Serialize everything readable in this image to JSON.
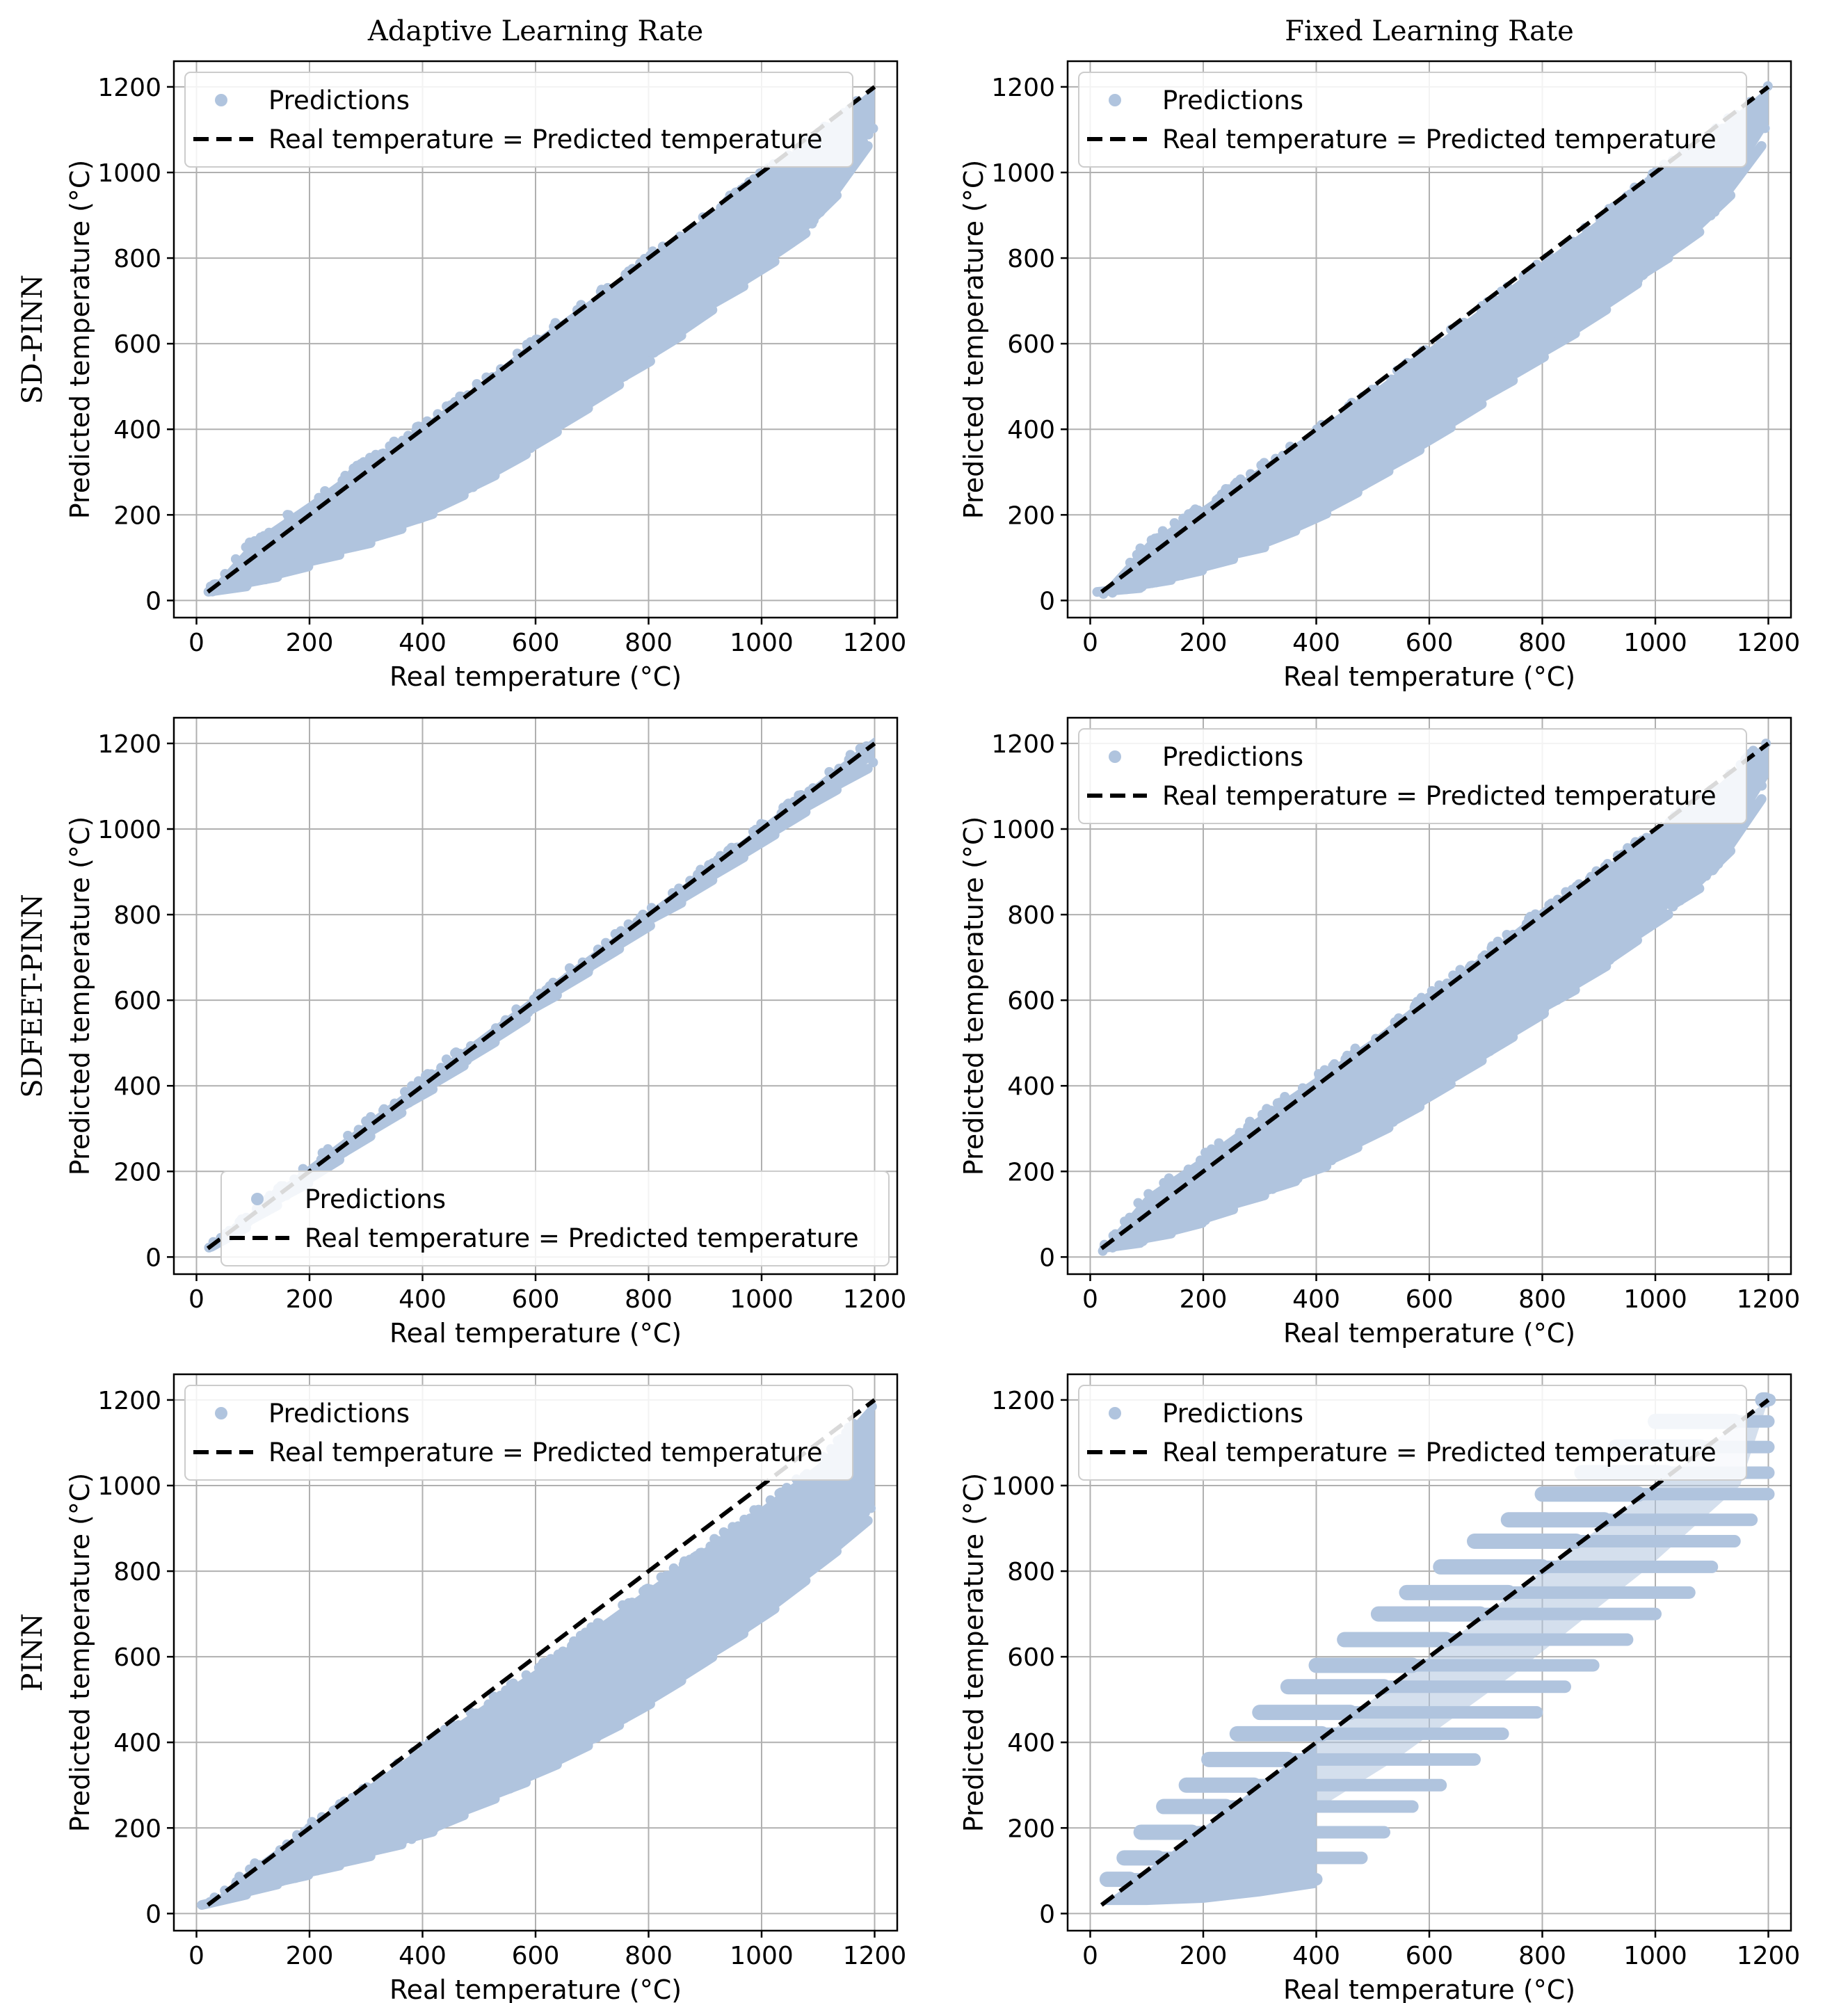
{
  "column_titles": [
    "Adaptive Learning Rate",
    "Fixed Learning Rate"
  ],
  "row_titles": [
    "SD-PINN",
    "SDFEET-PINN",
    "PINN"
  ],
  "colors": {
    "predictions": "#b0c4de",
    "ideal_line": "#000000"
  },
  "chart_data": [
    {
      "type": "scatter",
      "row": 0,
      "col": 0,
      "model": "SD-PINN",
      "learning_rate": "Adaptive",
      "xlabel": "Real temperature (°C)",
      "ylabel": "Predicted temperature (°C)",
      "xlim": [
        -40,
        1240
      ],
      "ylim": [
        -40,
        1260
      ],
      "xticks": [
        0,
        200,
        400,
        600,
        800,
        1000,
        1200
      ],
      "yticks": [
        0,
        200,
        400,
        600,
        800,
        1000,
        1200
      ],
      "legend": {
        "position": "upper-left",
        "entries": [
          "Predictions",
          "Real temperature = Predicted temperature"
        ]
      },
      "series": [
        {
          "name": "Predictions",
          "kind": "scatter_band",
          "upper": [
            [
              20,
              20
            ],
            [
              100,
              140
            ],
            [
              200,
              230
            ],
            [
              300,
              325
            ],
            [
              400,
              410
            ],
            [
              500,
              505
            ],
            [
              600,
              610
            ],
            [
              700,
              705
            ],
            [
              800,
              805
            ],
            [
              900,
              895
            ],
            [
              1000,
              1000
            ],
            [
              1100,
              1090
            ],
            [
              1200,
              1200
            ]
          ],
          "lower": [
            [
              20,
              20
            ],
            [
              100,
              45
            ],
            [
              200,
              90
            ],
            [
              300,
              140
            ],
            [
              400,
              200
            ],
            [
              500,
              280
            ],
            [
              600,
              370
            ],
            [
              700,
              470
            ],
            [
              800,
              570
            ],
            [
              900,
              680
            ],
            [
              1000,
              780
            ],
            [
              1100,
              900
            ],
            [
              1200,
              1110
            ]
          ]
        },
        {
          "name": "Real temperature = Predicted temperature",
          "kind": "line",
          "x": [
            20,
            1200
          ],
          "y": [
            20,
            1200
          ]
        }
      ]
    },
    {
      "type": "scatter",
      "row": 0,
      "col": 1,
      "model": "SD-PINN",
      "learning_rate": "Fixed",
      "xlabel": "Real temperature (°C)",
      "ylabel": "Predicted temperature (°C)",
      "xlim": [
        -40,
        1240
      ],
      "ylim": [
        -40,
        1260
      ],
      "xticks": [
        0,
        200,
        400,
        600,
        800,
        1000,
        1200
      ],
      "yticks": [
        0,
        200,
        400,
        600,
        800,
        1000,
        1200
      ],
      "legend": {
        "position": "upper-left",
        "entries": [
          "Predictions",
          "Real temperature = Predicted temperature"
        ]
      },
      "series": [
        {
          "name": "Predictions",
          "kind": "scatter_band",
          "upper": [
            [
              20,
              20
            ],
            [
              100,
              135
            ],
            [
              200,
              220
            ],
            [
              300,
              310
            ],
            [
              400,
              400
            ],
            [
              500,
              490
            ],
            [
              600,
              590
            ],
            [
              700,
              690
            ],
            [
              800,
              790
            ],
            [
              900,
              890
            ],
            [
              1000,
              1000
            ],
            [
              1100,
              1090
            ],
            [
              1200,
              1200
            ]
          ],
          "lower": [
            [
              20,
              20
            ],
            [
              100,
              40
            ],
            [
              200,
              80
            ],
            [
              300,
              130
            ],
            [
              400,
              200
            ],
            [
              500,
              290
            ],
            [
              600,
              380
            ],
            [
              700,
              480
            ],
            [
              800,
              580
            ],
            [
              900,
              680
            ],
            [
              1000,
              790
            ],
            [
              1100,
              900
            ],
            [
              1200,
              1110
            ]
          ]
        },
        {
          "name": "Real temperature = Predicted temperature",
          "kind": "line",
          "x": [
            20,
            1200
          ],
          "y": [
            20,
            1200
          ]
        }
      ]
    },
    {
      "type": "scatter",
      "row": 1,
      "col": 0,
      "model": "SDFEET-PINN",
      "learning_rate": "Adaptive",
      "xlabel": "Real temperature (°C)",
      "ylabel": "Predicted temperature (°C)",
      "xlim": [
        -40,
        1240
      ],
      "ylim": [
        -40,
        1260
      ],
      "xticks": [
        0,
        200,
        400,
        600,
        800,
        1000,
        1200
      ],
      "yticks": [
        0,
        200,
        400,
        600,
        800,
        1000,
        1200
      ],
      "legend": {
        "position": "lower-right",
        "entries": [
          "Predictions",
          "Real temperature = Predicted temperature"
        ]
      },
      "series": [
        {
          "name": "Predictions",
          "kind": "scatter_band",
          "upper": [
            [
              20,
              22
            ],
            [
              200,
              215
            ],
            [
              400,
              415
            ],
            [
              600,
              612
            ],
            [
              800,
              808
            ],
            [
              1000,
              1008
            ],
            [
              1100,
              1110
            ],
            [
              1200,
              1215
            ]
          ],
          "lower": [
            [
              20,
              18
            ],
            [
              200,
              188
            ],
            [
              400,
              388
            ],
            [
              600,
              588
            ],
            [
              800,
              785
            ],
            [
              1000,
              978
            ],
            [
              1100,
              1075
            ],
            [
              1200,
              1165
            ]
          ]
        },
        {
          "name": "Real temperature = Predicted temperature",
          "kind": "line",
          "x": [
            20,
            1200
          ],
          "y": [
            20,
            1200
          ]
        }
      ]
    },
    {
      "type": "scatter",
      "row": 1,
      "col": 1,
      "model": "SDFEET-PINN",
      "learning_rate": "Fixed",
      "xlabel": "Real temperature (°C)",
      "ylabel": "Predicted temperature (°C)",
      "xlim": [
        -40,
        1240
      ],
      "ylim": [
        -40,
        1260
      ],
      "xticks": [
        0,
        200,
        400,
        600,
        800,
        1000,
        1200
      ],
      "yticks": [
        0,
        200,
        400,
        600,
        800,
        1000,
        1200
      ],
      "legend": {
        "position": "upper-left",
        "entries": [
          "Predictions",
          "Real temperature = Predicted temperature"
        ]
      },
      "series": [
        {
          "name": "Predictions",
          "kind": "scatter_band",
          "upper": [
            [
              20,
              20
            ],
            [
              100,
              145
            ],
            [
              200,
              235
            ],
            [
              300,
              330
            ],
            [
              400,
              420
            ],
            [
              500,
              510
            ],
            [
              600,
              615
            ],
            [
              700,
              710
            ],
            [
              800,
              815
            ],
            [
              900,
              900
            ],
            [
              1000,
              1000
            ],
            [
              1100,
              1090
            ],
            [
              1200,
              1210
            ]
          ],
          "lower": [
            [
              20,
              20
            ],
            [
              100,
              45
            ],
            [
              200,
              90
            ],
            [
              300,
              150
            ],
            [
              400,
              210
            ],
            [
              500,
              290
            ],
            [
              600,
              380
            ],
            [
              700,
              480
            ],
            [
              800,
              580
            ],
            [
              900,
              680
            ],
            [
              1000,
              790
            ],
            [
              1100,
              900
            ],
            [
              1200,
              1120
            ]
          ]
        },
        {
          "name": "Real temperature = Predicted temperature",
          "kind": "line",
          "x": [
            20,
            1200
          ],
          "y": [
            20,
            1200
          ]
        }
      ]
    },
    {
      "type": "scatter",
      "row": 2,
      "col": 0,
      "model": "PINN",
      "learning_rate": "Adaptive",
      "xlabel": "Real temperature (°C)",
      "ylabel": "Predicted temperature (°C)",
      "xlim": [
        -40,
        1240
      ],
      "ylim": [
        -40,
        1260
      ],
      "xticks": [
        0,
        200,
        400,
        600,
        800,
        1000,
        1200
      ],
      "yticks": [
        0,
        200,
        400,
        600,
        800,
        1000,
        1200
      ],
      "legend": {
        "position": "upper-left",
        "entries": [
          "Predictions",
          "Real temperature = Predicted temperature"
        ]
      },
      "series": [
        {
          "name": "Predictions",
          "kind": "scatter_band",
          "upper": [
            [
              20,
              20
            ],
            [
              100,
              110
            ],
            [
              200,
              205
            ],
            [
              300,
              295
            ],
            [
              400,
              390
            ],
            [
              500,
              480
            ],
            [
              600,
              570
            ],
            [
              700,
              665
            ],
            [
              800,
              760
            ],
            [
              900,
              855
            ],
            [
              1000,
              950
            ],
            [
              1100,
              1050
            ],
            [
              1200,
              1200
            ]
          ],
          "lower": [
            [
              20,
              20
            ],
            [
              100,
              60
            ],
            [
              200,
              100
            ],
            [
              300,
              140
            ],
            [
              400,
              190
            ],
            [
              500,
              260
            ],
            [
              600,
              330
            ],
            [
              700,
              410
            ],
            [
              800,
              500
            ],
            [
              900,
              600
            ],
            [
              1000,
              700
            ],
            [
              1100,
              820
            ],
            [
              1200,
              950
            ]
          ]
        },
        {
          "name": "Real temperature = Predicted temperature",
          "kind": "line",
          "x": [
            20,
            1200
          ],
          "y": [
            20,
            1200
          ]
        }
      ]
    },
    {
      "type": "scatter",
      "row": 2,
      "col": 1,
      "model": "PINN",
      "learning_rate": "Fixed",
      "xlabel": "Real temperature (°C)",
      "ylabel": "Predicted temperature (°C)",
      "xlim": [
        -40,
        1240
      ],
      "ylim": [
        -40,
        1260
      ],
      "xticks": [
        0,
        200,
        400,
        600,
        800,
        1000,
        1200
      ],
      "yticks": [
        0,
        200,
        400,
        600,
        800,
        1000,
        1200
      ],
      "legend": {
        "position": "upper-left",
        "entries": [
          "Predictions",
          "Real temperature = Predicted temperature"
        ]
      },
      "series": [
        {
          "name": "Predictions",
          "kind": "staircase_streaks",
          "streaks": [
            [
              80,
              30,
              400
            ],
            [
              130,
              60,
              480
            ],
            [
              190,
              90,
              520
            ],
            [
              250,
              130,
              570
            ],
            [
              300,
              170,
              620
            ],
            [
              360,
              210,
              680
            ],
            [
              420,
              260,
              730
            ],
            [
              470,
              300,
              790
            ],
            [
              530,
              350,
              840
            ],
            [
              580,
              400,
              890
            ],
            [
              640,
              450,
              950
            ],
            [
              700,
              510,
              1000
            ],
            [
              750,
              560,
              1060
            ],
            [
              810,
              620,
              1100
            ],
            [
              870,
              680,
              1140
            ],
            [
              920,
              740,
              1170
            ],
            [
              980,
              800,
              1200
            ],
            [
              1030,
              870,
              1200
            ],
            [
              1090,
              930,
              1200
            ],
            [
              1150,
              1000,
              1200
            ],
            [
              1200,
              1195,
              1202
            ]
          ]
        },
        {
          "name": "Real temperature = Predicted temperature",
          "kind": "line",
          "x": [
            20,
            1200
          ],
          "y": [
            20,
            1200
          ]
        }
      ]
    }
  ]
}
